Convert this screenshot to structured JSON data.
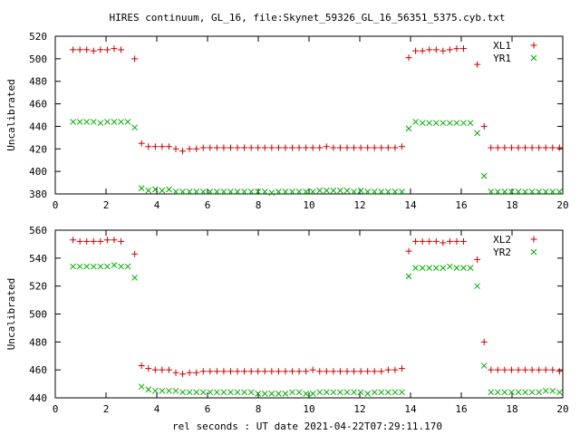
{
  "chart_data": [
    {
      "type": "scatter",
      "title": "HIRES continuum, GL_16, file:Skynet_59326_GL_16_56351_5375.cyb.txt",
      "xlabel": "",
      "ylabel": "Uncalibrated",
      "xlim": [
        0,
        20
      ],
      "ylim": [
        380,
        520
      ],
      "xticks": [
        "0",
        "2",
        "4",
        "6",
        "8",
        "10",
        "12",
        "14",
        "16",
        "18",
        "20"
      ],
      "yticks": [
        "380",
        "400",
        "420",
        "440",
        "460",
        "480",
        "500",
        "520"
      ],
      "grid": false,
      "legend_position": "top-right",
      "series": [
        {
          "name": "XL1",
          "marker": "+",
          "color": "#cc0000",
          "x": [
            0.7,
            0.97,
            1.24,
            1.51,
            1.78,
            2.05,
            2.32,
            2.59,
            2.86,
            3.13,
            3.4,
            3.67,
            3.94,
            4.21,
            4.48,
            4.75,
            5.02,
            5.29,
            5.56,
            5.83,
            6.1,
            6.37,
            6.64,
            6.91,
            7.18,
            7.45,
            7.72,
            7.99,
            8.26,
            8.53,
            8.8,
            9.07,
            9.34,
            9.61,
            9.88,
            10.15,
            10.42,
            10.69,
            10.96,
            11.23,
            11.5,
            11.77,
            12.04,
            12.31,
            12.58,
            12.85,
            13.12,
            13.39,
            13.66,
            13.93,
            14.2,
            14.47,
            14.74,
            15.01,
            15.28,
            15.55,
            15.82,
            16.09,
            16.36,
            16.63,
            16.9,
            17.17,
            17.44,
            17.71,
            17.98,
            18.25,
            18.52,
            18.79,
            19.06,
            19.33,
            19.6,
            19.87
          ],
          "y": [
            508,
            508,
            508,
            507,
            508,
            508,
            509,
            508,
            null,
            500,
            425,
            422,
            422,
            422,
            422,
            420,
            418,
            420,
            420,
            421,
            421,
            421,
            421,
            421,
            421,
            421,
            421,
            421,
            421,
            421,
            421,
            421,
            421,
            421,
            421,
            421,
            421,
            422,
            421,
            421,
            421,
            421,
            421,
            421,
            421,
            421,
            421,
            421,
            422,
            501,
            507,
            507,
            508,
            508,
            507,
            508,
            509,
            509,
            null,
            495,
            440,
            421,
            421,
            421,
            421,
            421,
            421,
            421,
            421,
            421,
            421,
            421
          ],
          "y_note": ""
        },
        {
          "name": "YR1",
          "marker": "x",
          "color": "#00aa00",
          "x": [
            0.7,
            0.97,
            1.24,
            1.51,
            1.78,
            2.05,
            2.32,
            2.59,
            2.86,
            3.13,
            3.4,
            3.67,
            3.94,
            4.21,
            4.48,
            4.75,
            5.02,
            5.29,
            5.56,
            5.83,
            6.1,
            6.37,
            6.64,
            6.91,
            7.18,
            7.45,
            7.72,
            7.99,
            8.26,
            8.53,
            8.8,
            9.07,
            9.34,
            9.61,
            9.88,
            10.15,
            10.42,
            10.69,
            10.96,
            11.23,
            11.5,
            11.77,
            12.04,
            12.31,
            12.58,
            12.85,
            13.12,
            13.39,
            13.66,
            13.93,
            14.2,
            14.47,
            14.74,
            15.01,
            15.28,
            15.55,
            15.82,
            16.09,
            16.36,
            16.63,
            16.9,
            17.17,
            17.44,
            17.71,
            17.98,
            18.25,
            18.52,
            18.79,
            19.06,
            19.33,
            19.6,
            19.87
          ],
          "y": [
            444,
            444,
            444,
            444,
            443,
            444,
            444,
            444,
            444,
            439,
            385,
            383,
            384,
            383,
            384,
            382,
            382,
            382,
            382,
            382,
            382,
            382,
            382,
            382,
            382,
            382,
            382,
            382,
            382,
            381,
            382,
            382,
            382,
            382,
            382,
            382,
            383,
            383,
            383,
            383,
            383,
            382,
            383,
            382,
            382,
            382,
            382,
            382,
            382,
            438,
            444,
            443,
            443,
            443,
            443,
            443,
            443,
            443,
            443,
            434,
            396,
            382,
            382,
            382,
            382,
            382,
            382,
            382,
            382,
            382,
            382,
            382
          ]
        }
      ]
    },
    {
      "type": "scatter",
      "title": "",
      "xlabel": "rel seconds : UT date 2021-04-22T07:29:11.170",
      "ylabel": "Uncalibrated",
      "xlim": [
        0,
        20
      ],
      "ylim": [
        440,
        560
      ],
      "xticks": [
        "0",
        "2",
        "4",
        "6",
        "8",
        "10",
        "12",
        "14",
        "16",
        "18",
        "20"
      ],
      "yticks": [
        "440",
        "460",
        "480",
        "500",
        "520",
        "540",
        "560"
      ],
      "grid": false,
      "legend_position": "top-right",
      "series": [
        {
          "name": "XL2",
          "marker": "+",
          "color": "#cc0000",
          "x": [
            0.7,
            0.97,
            1.24,
            1.51,
            1.78,
            2.05,
            2.32,
            2.59,
            2.86,
            3.13,
            3.4,
            3.67,
            3.94,
            4.21,
            4.48,
            4.75,
            5.02,
            5.29,
            5.56,
            5.83,
            6.1,
            6.37,
            6.64,
            6.91,
            7.18,
            7.45,
            7.72,
            7.99,
            8.26,
            8.53,
            8.8,
            9.07,
            9.34,
            9.61,
            9.88,
            10.15,
            10.42,
            10.69,
            10.96,
            11.23,
            11.5,
            11.77,
            12.04,
            12.31,
            12.58,
            12.85,
            13.12,
            13.39,
            13.66,
            13.93,
            14.2,
            14.47,
            14.74,
            15.01,
            15.28,
            15.55,
            15.82,
            16.09,
            16.36,
            16.63,
            16.9,
            17.17,
            17.44,
            17.71,
            17.98,
            18.25,
            18.52,
            18.79,
            19.06,
            19.33,
            19.6,
            19.87
          ],
          "y": [
            553,
            552,
            552,
            552,
            552,
            553,
            553,
            552,
            null,
            543,
            463,
            461,
            460,
            460,
            460,
            458,
            457,
            458,
            458,
            459,
            459,
            459,
            459,
            459,
            459,
            459,
            459,
            459,
            459,
            459,
            459,
            459,
            459,
            459,
            459,
            460,
            459,
            459,
            459,
            459,
            459,
            459,
            459,
            459,
            459,
            459,
            460,
            460,
            461,
            545,
            552,
            552,
            552,
            552,
            551,
            552,
            552,
            552,
            null,
            539,
            480,
            460,
            460,
            460,
            460,
            460,
            460,
            460,
            460,
            460,
            460,
            459
          ]
        },
        {
          "name": "YR2",
          "marker": "x",
          "color": "#00aa00",
          "x": [
            0.7,
            0.97,
            1.24,
            1.51,
            1.78,
            2.05,
            2.32,
            2.59,
            2.86,
            3.13,
            3.4,
            3.67,
            3.94,
            4.21,
            4.48,
            4.75,
            5.02,
            5.29,
            5.56,
            5.83,
            6.1,
            6.37,
            6.64,
            6.91,
            7.18,
            7.45,
            7.72,
            7.99,
            8.26,
            8.53,
            8.8,
            9.07,
            9.34,
            9.61,
            9.88,
            10.15,
            10.42,
            10.69,
            10.96,
            11.23,
            11.5,
            11.77,
            12.04,
            12.31,
            12.58,
            12.85,
            13.12,
            13.39,
            13.66,
            13.93,
            14.2,
            14.47,
            14.74,
            15.01,
            15.28,
            15.55,
            15.82,
            16.09,
            16.36,
            16.63,
            16.9,
            17.17,
            17.44,
            17.71,
            17.98,
            18.25,
            18.52,
            18.79,
            19.06,
            19.33,
            19.6,
            19.87
          ],
          "y": [
            534,
            534,
            534,
            534,
            534,
            534,
            535,
            534,
            534,
            526,
            448,
            446,
            445,
            445,
            445,
            445,
            444,
            444,
            444,
            444,
            444,
            444,
            444,
            444,
            444,
            444,
            444,
            443,
            443,
            443,
            443,
            443,
            444,
            444,
            443,
            443,
            444,
            444,
            444,
            444,
            444,
            444,
            444,
            443,
            444,
            444,
            444,
            444,
            444,
            527,
            533,
            533,
            533,
            533,
            533,
            534,
            533,
            533,
            533,
            520,
            463,
            444,
            444,
            444,
            444,
            444,
            444,
            444,
            444,
            445,
            445,
            444
          ]
        }
      ]
    }
  ]
}
